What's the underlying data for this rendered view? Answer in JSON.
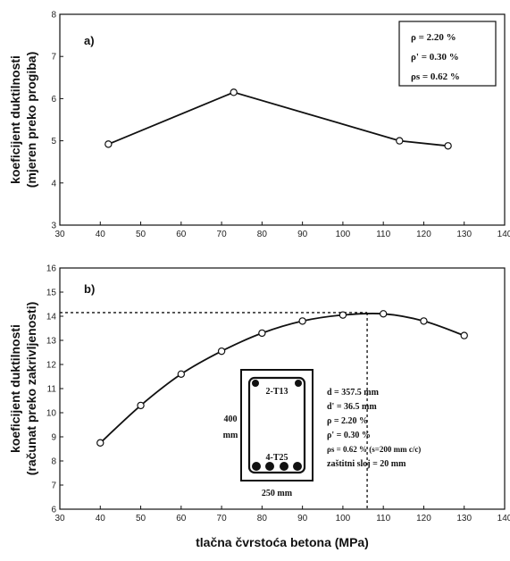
{
  "chart_data": [
    {
      "type": "line",
      "panel_label": "a)",
      "ylabel_line1": "koeficijent duktilnosti",
      "ylabel_line2": "(mjeren preko progiba)",
      "xlim": [
        30,
        140
      ],
      "ylim": [
        3,
        8
      ],
      "x_ticks": [
        "30",
        "40",
        "50",
        "60",
        "70",
        "80",
        "90",
        "100",
        "110",
        "120",
        "130",
        "140"
      ],
      "y_ticks": [
        "3",
        "4",
        "5",
        "6",
        "7",
        "8"
      ],
      "series": [
        {
          "x": [
            42,
            73,
            114,
            126
          ],
          "y": [
            4.92,
            6.15,
            5.0,
            4.88
          ]
        }
      ],
      "legend": [
        "ρ = 2.20 %",
        "ρ' = 0.30 %",
        "ρs = 0.62 %"
      ],
      "legend_position": "top-right",
      "grid": false
    },
    {
      "type": "line",
      "panel_label": "b)",
      "ylabel_line1": "koeficijent duktilnosti",
      "ylabel_line2": "(računat preko zakrivljenosti)",
      "xlabel": "tlačna čvrstoća betona (MPa)",
      "xlim": [
        30,
        140
      ],
      "ylim": [
        6,
        16
      ],
      "x_ticks": [
        "30",
        "40",
        "50",
        "60",
        "70",
        "80",
        "90",
        "100",
        "110",
        "120",
        "130",
        "140"
      ],
      "y_ticks": [
        "6",
        "7",
        "8",
        "9",
        "10",
        "11",
        "12",
        "13",
        "14",
        "15",
        "16"
      ],
      "series": [
        {
          "x": [
            40,
            50,
            60,
            70,
            80,
            90,
            100,
            110,
            120,
            130
          ],
          "y": [
            8.75,
            10.3,
            11.6,
            12.55,
            13.3,
            13.8,
            14.05,
            14.1,
            13.8,
            13.2
          ]
        }
      ],
      "reference_point": {
        "x": 106,
        "y": 14.15
      },
      "section": {
        "top_bars": "2-T13",
        "bottom_bars": "4-T25",
        "height": "400",
        "height_unit": "mm",
        "width": "250 mm"
      },
      "annotations": [
        "d = 357.5 mm",
        "d' = 36.5 mm",
        "ρ = 2.20 %",
        "ρ' = 0.30 %",
        "ρs = 0.62 % (s=200 mm c/c)",
        "zaštitni sloj = 20 mm"
      ],
      "grid": false
    }
  ]
}
